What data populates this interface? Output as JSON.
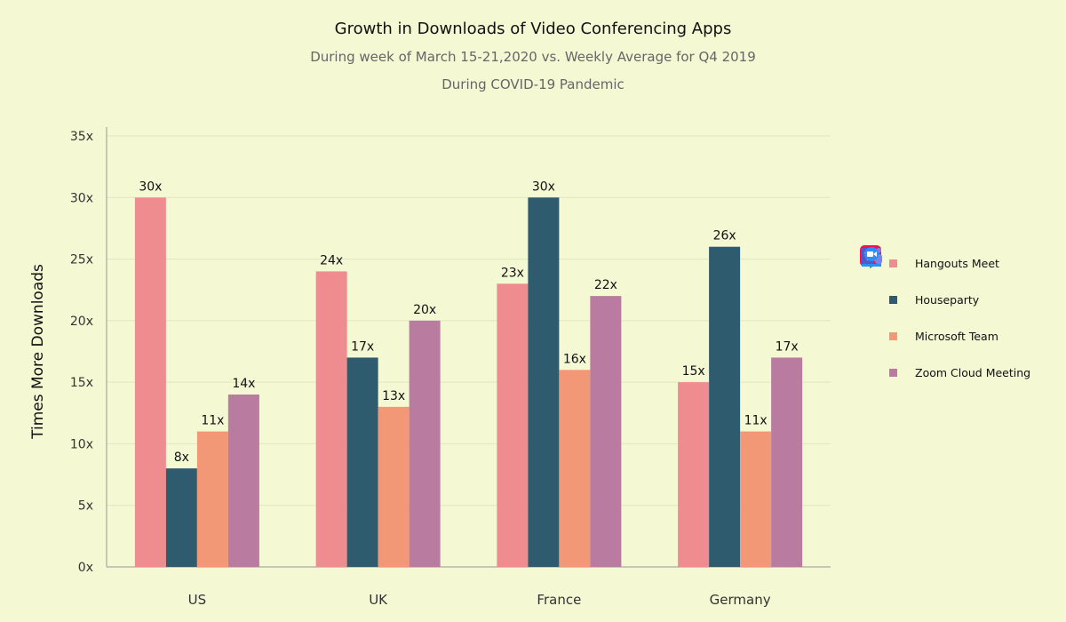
{
  "chart_data": {
    "type": "bar",
    "title": "Growth in Downloads of Video Conferencing Apps",
    "subtitle": [
      "During week of March 15-21,2020 vs. Weekly Average for Q4 2019",
      "During COVID-19 Pandemic"
    ],
    "xlabel": "",
    "ylabel": "Times More Downloads",
    "ylim": [
      0,
      35
    ],
    "yticks": [
      "0x",
      "5x",
      "10x",
      "15x",
      "20x",
      "25x",
      "30x",
      "35x"
    ],
    "grid": true,
    "legend_placement": "right",
    "categories": [
      "US",
      "UK",
      "France",
      "Germany"
    ],
    "series": [
      {
        "name": "Hangouts Meet",
        "color": "#ef8c8f",
        "icon": "hangouts-icon",
        "values": [
          30,
          24,
          23,
          15
        ],
        "labels": [
          "30x",
          "24x",
          "23x",
          "15x"
        ]
      },
      {
        "name": "Houseparty",
        "color": "#2e5b6e",
        "icon": "houseparty-icon",
        "values": [
          8,
          17,
          30,
          26
        ],
        "labels": [
          "8x",
          "17x",
          "30x",
          "26x"
        ]
      },
      {
        "name": "Microsoft Team",
        "color": "#f39877",
        "icon": "teams-icon",
        "values": [
          11,
          13,
          16,
          11
        ],
        "labels": [
          "11x",
          "13x",
          "16x",
          "11x"
        ]
      },
      {
        "name": "Zoom Cloud Meeting",
        "color": "#b97ba0",
        "icon": "zoom-icon",
        "values": [
          14,
          20,
          22,
          17
        ],
        "labels": [
          "14x",
          "20x",
          "22x",
          "17x"
        ]
      }
    ]
  }
}
